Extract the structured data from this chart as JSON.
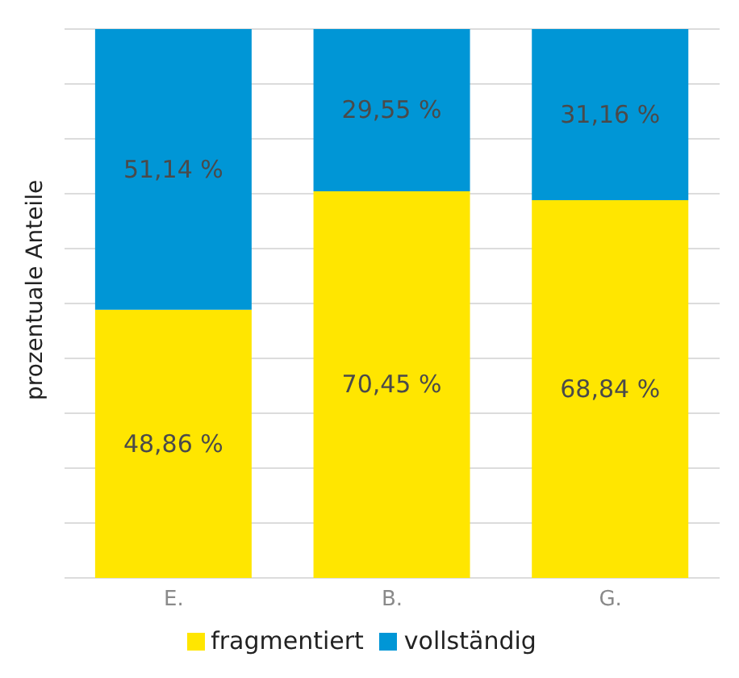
{
  "chart_data": {
    "type": "bar",
    "stacked": true,
    "ylabel": "prozentuale Anteile",
    "categories": [
      "E.",
      "B.",
      "G."
    ],
    "series": [
      {
        "name": "fragmentiert",
        "color": "#ffe600",
        "values": [
          48.86,
          70.45,
          68.84
        ],
        "value_labels": [
          "48,86 %",
          "70,45 %",
          "68,84 %"
        ]
      },
      {
        "name": "vollständig",
        "color": "#0096d6",
        "values": [
          51.14,
          29.55,
          31.16
        ],
        "value_labels": [
          "51,14 %",
          "29,55 %",
          "31,16 %"
        ]
      }
    ],
    "ylim": [
      0,
      100
    ],
    "yticks": [
      {
        "value": 0,
        "label": null
      },
      {
        "value": 10,
        "label": null
      },
      {
        "value": 20,
        "label": null
      },
      {
        "value": 30,
        "label": null
      },
      {
        "value": 40,
        "label": null
      },
      {
        "value": 50,
        "label": null
      },
      {
        "value": 60,
        "label": null
      },
      {
        "value": 70,
        "label": null
      },
      {
        "value": 80,
        "label": null
      },
      {
        "value": 90,
        "label": null
      },
      {
        "value": 100,
        "label": null
      }
    ],
    "grid": "y",
    "tick_labels": "x",
    "legend": "bottom"
  }
}
